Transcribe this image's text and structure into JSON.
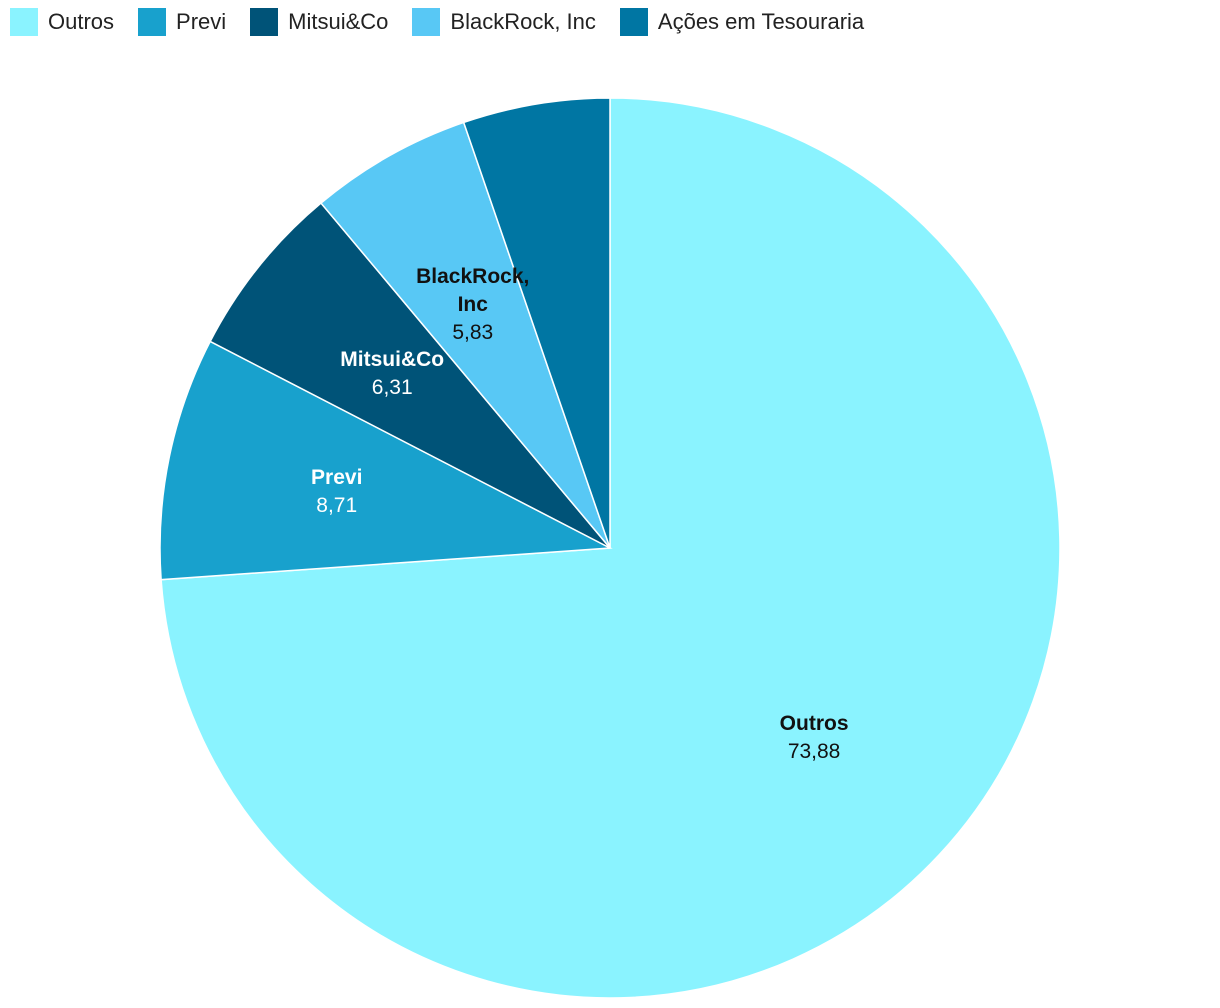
{
  "chart_data": {
    "type": "pie",
    "series": [
      {
        "name": "Outros",
        "color": "#8af3ff",
        "values": [
          73.88
        ],
        "value_labels": [
          "73,88"
        ]
      },
      {
        "name": "Previ",
        "color": "#18a1cd",
        "values": [
          8.71
        ],
        "value_labels": [
          "8,71"
        ]
      },
      {
        "name": "Mitsui&Co",
        "color": "#005378",
        "values": [
          6.31
        ],
        "value_labels": [
          "6,31"
        ]
      },
      {
        "name": "BlackRock, Inc",
        "color": "#58c8f5",
        "values": [
          5.83
        ],
        "value_labels": [
          "5,83"
        ]
      },
      {
        "name": "Ações em Tesouraria",
        "color": "#0076a3",
        "values": [
          5.27
        ]
      }
    ],
    "legend": "top-left"
  }
}
